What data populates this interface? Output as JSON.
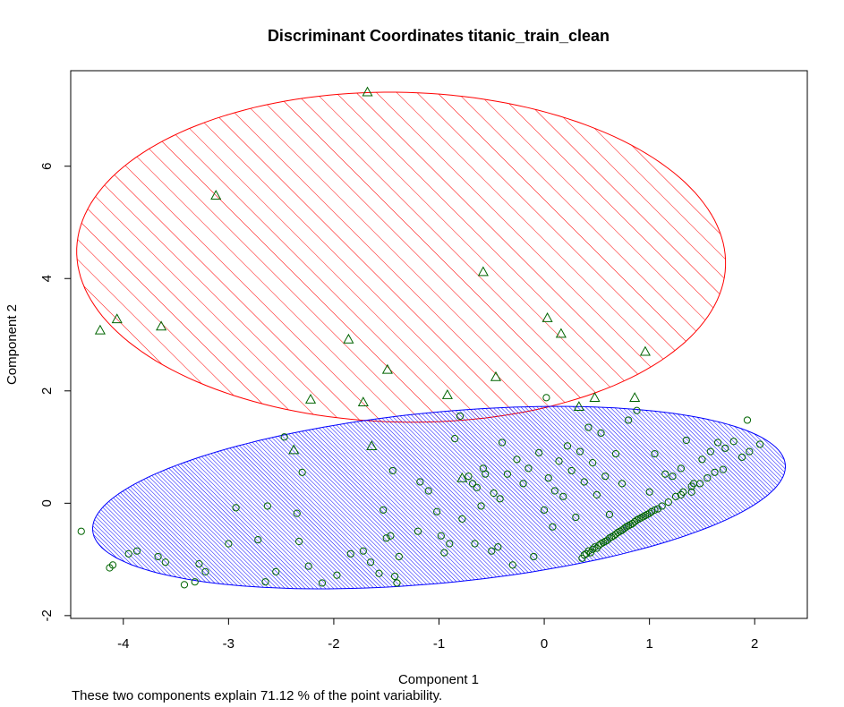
{
  "chart_data": {
    "type": "scatter",
    "title": "Discriminant Coordinates titanic_train_clean",
    "xlabel": "Component 1",
    "ylabel": "Component 2",
    "xlim": [
      -4.5,
      2.5
    ],
    "ylim": [
      -2.05,
      7.7
    ],
    "x_ticks": [
      -4,
      -3,
      -2,
      -1,
      0,
      1,
      2
    ],
    "y_ticks": [
      -2,
      0,
      2,
      4,
      6
    ],
    "colors": {
      "cluster1_ellipse": "#ff0000",
      "cluster2_ellipse": "#0000ff",
      "points": "#006400"
    },
    "clusters": [
      {
        "marker": "triangle",
        "ellipse_color": "#ff0000",
        "shading": "diagonal-hatch",
        "ellipse": {
          "center": [
            -1.36,
            4.38
          ],
          "semi_axes": [
            3.1,
            2.92
          ],
          "angle_deg": -18
        },
        "points": [
          [
            -1.68,
            7.32
          ],
          [
            -3.12,
            5.48
          ],
          [
            -0.58,
            4.12
          ],
          [
            -4.06,
            3.28
          ],
          [
            -4.22,
            3.08
          ],
          [
            -3.64,
            3.15
          ],
          [
            0.03,
            3.3
          ],
          [
            0.16,
            3.02
          ],
          [
            -1.86,
            2.92
          ],
          [
            0.96,
            2.7
          ],
          [
            -1.49,
            2.38
          ],
          [
            -0.46,
            2.25
          ],
          [
            -0.92,
            1.93
          ],
          [
            -2.22,
            1.85
          ],
          [
            -1.72,
            1.8
          ],
          [
            0.48,
            1.88
          ],
          [
            0.86,
            1.88
          ],
          [
            0.33,
            1.72
          ],
          [
            -1.64,
            1.02
          ],
          [
            -2.38,
            0.95
          ],
          [
            -0.78,
            0.45
          ]
        ]
      },
      {
        "marker": "circle",
        "ellipse_color": "#0000ff",
        "shading": "dense-hatch",
        "ellipse": {
          "center": [
            -1.0,
            0.1
          ],
          "semi_axes": [
            3.35,
            1.5
          ],
          "angle_deg": 12
        },
        "points": [
          [
            -4.4,
            -0.5
          ],
          [
            -4.13,
            -1.15
          ],
          [
            -4.1,
            -1.1
          ],
          [
            -3.95,
            -0.9
          ],
          [
            -3.87,
            -0.85
          ],
          [
            -3.67,
            -0.95
          ],
          [
            -3.6,
            -1.05
          ],
          [
            -3.42,
            -1.45
          ],
          [
            -3.32,
            -1.4
          ],
          [
            -3.28,
            -1.08
          ],
          [
            -3.22,
            -1.22
          ],
          [
            -3.0,
            -0.72
          ],
          [
            -2.93,
            -0.08
          ],
          [
            -2.72,
            -0.65
          ],
          [
            -2.65,
            -1.4
          ],
          [
            -2.63,
            -0.05
          ],
          [
            -2.55,
            -1.22
          ],
          [
            -2.47,
            1.18
          ],
          [
            -2.35,
            -0.18
          ],
          [
            -2.33,
            -0.68
          ],
          [
            -2.3,
            0.55
          ],
          [
            -2.24,
            -1.12
          ],
          [
            -2.11,
            -1.42
          ],
          [
            -1.97,
            -1.28
          ],
          [
            -1.84,
            -0.9
          ],
          [
            -1.72,
            -0.85
          ],
          [
            -1.65,
            -1.05
          ],
          [
            -1.57,
            -1.25
          ],
          [
            -1.53,
            -0.12
          ],
          [
            -1.5,
            -0.62
          ],
          [
            -1.46,
            -0.58
          ],
          [
            -1.44,
            0.58
          ],
          [
            -1.42,
            -1.3
          ],
          [
            -1.4,
            -1.42
          ],
          [
            -1.38,
            -0.95
          ],
          [
            -1.2,
            -0.5
          ],
          [
            -1.18,
            0.38
          ],
          [
            -1.1,
            0.22
          ],
          [
            -1.02,
            -0.15
          ],
          [
            -0.98,
            -0.58
          ],
          [
            -0.95,
            -0.88
          ],
          [
            -0.9,
            -0.72
          ],
          [
            -0.85,
            1.15
          ],
          [
            -0.8,
            1.55
          ],
          [
            -0.78,
            -0.28
          ],
          [
            -0.72,
            0.48
          ],
          [
            -0.68,
            0.35
          ],
          [
            -0.66,
            -0.72
          ],
          [
            -0.64,
            0.28
          ],
          [
            -0.6,
            -0.05
          ],
          [
            -0.58,
            0.62
          ],
          [
            -0.56,
            0.52
          ],
          [
            -0.5,
            -0.85
          ],
          [
            -0.48,
            0.18
          ],
          [
            -0.44,
            -0.78
          ],
          [
            -0.42,
            0.08
          ],
          [
            -0.4,
            1.08
          ],
          [
            -0.35,
            0.52
          ],
          [
            -0.3,
            -1.1
          ],
          [
            -0.26,
            0.78
          ],
          [
            -0.2,
            0.35
          ],
          [
            -0.15,
            0.62
          ],
          [
            -0.1,
            -0.95
          ],
          [
            -0.05,
            0.9
          ],
          [
            0.0,
            -0.12
          ],
          [
            0.02,
            1.88
          ],
          [
            0.04,
            0.45
          ],
          [
            0.08,
            -0.42
          ],
          [
            0.1,
            0.22
          ],
          [
            0.14,
            0.75
          ],
          [
            0.18,
            0.12
          ],
          [
            0.22,
            1.02
          ],
          [
            0.26,
            0.58
          ],
          [
            0.3,
            -0.25
          ],
          [
            0.34,
            0.92
          ],
          [
            0.38,
            0.38
          ],
          [
            0.42,
            1.35
          ],
          [
            0.46,
            0.72
          ],
          [
            0.5,
            0.15
          ],
          [
            0.54,
            1.25
          ],
          [
            0.58,
            0.48
          ],
          [
            0.62,
            -0.2
          ],
          [
            0.68,
            0.88
          ],
          [
            0.74,
            0.35
          ],
          [
            0.8,
            1.48
          ],
          [
            0.88,
            1.65
          ],
          [
            1.0,
            0.2
          ],
          [
            1.05,
            0.88
          ],
          [
            1.15,
            0.52
          ],
          [
            1.22,
            0.48
          ],
          [
            1.3,
            0.62
          ],
          [
            1.35,
            1.12
          ],
          [
            1.42,
            0.35
          ],
          [
            1.5,
            0.78
          ],
          [
            1.58,
            0.92
          ],
          [
            1.65,
            1.08
          ],
          [
            1.72,
            0.98
          ],
          [
            1.8,
            1.1
          ],
          [
            1.88,
            0.82
          ],
          [
            1.95,
            0.92
          ],
          [
            2.05,
            1.05
          ],
          [
            1.93,
            1.48
          ],
          [
            0.36,
            -0.98
          ],
          [
            0.38,
            -0.92
          ],
          [
            0.4,
            -0.9
          ],
          [
            0.42,
            -0.85
          ],
          [
            0.44,
            -0.88
          ],
          [
            0.46,
            -0.82
          ],
          [
            0.48,
            -0.78
          ],
          [
            0.5,
            -0.8
          ],
          [
            0.52,
            -0.75
          ],
          [
            0.54,
            -0.72
          ],
          [
            0.56,
            -0.7
          ],
          [
            0.58,
            -0.68
          ],
          [
            0.6,
            -0.66
          ],
          [
            0.62,
            -0.62
          ],
          [
            0.64,
            -0.6
          ],
          [
            0.66,
            -0.58
          ],
          [
            0.68,
            -0.55
          ],
          [
            0.7,
            -0.52
          ],
          [
            0.72,
            -0.5
          ],
          [
            0.74,
            -0.48
          ],
          [
            0.76,
            -0.45
          ],
          [
            0.78,
            -0.42
          ],
          [
            0.8,
            -0.4
          ],
          [
            0.82,
            -0.38
          ],
          [
            0.84,
            -0.36
          ],
          [
            0.86,
            -0.33
          ],
          [
            0.88,
            -0.3
          ],
          [
            0.9,
            -0.28
          ],
          [
            0.92,
            -0.26
          ],
          [
            0.94,
            -0.24
          ],
          [
            0.96,
            -0.22
          ],
          [
            0.98,
            -0.2
          ],
          [
            1.0,
            -0.18
          ],
          [
            1.02,
            -0.15
          ],
          [
            1.05,
            -0.12
          ],
          [
            1.08,
            -0.1
          ],
          [
            1.12,
            -0.05
          ],
          [
            1.18,
            0.02
          ],
          [
            1.25,
            0.12
          ],
          [
            1.32,
            0.2
          ],
          [
            1.4,
            0.3
          ],
          [
            1.48,
            0.35
          ],
          [
            1.55,
            0.45
          ],
          [
            1.62,
            0.55
          ],
          [
            1.7,
            0.6
          ],
          [
            1.4,
            0.2
          ],
          [
            1.3,
            0.15
          ]
        ]
      }
    ]
  },
  "caption": "These two components explain 71.12 % of the point variability."
}
